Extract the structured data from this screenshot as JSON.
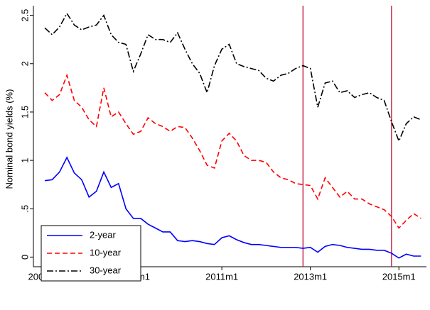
{
  "chart_data": {
    "type": "line",
    "y_label": "Nominal bond yields (%)",
    "x": [
      "2007m1",
      "2007m3",
      "2007m5",
      "2007m7",
      "2007m9",
      "2007m11",
      "2008m1",
      "2008m3",
      "2008m5",
      "2008m7",
      "2008m9",
      "2008m11",
      "2009m1",
      "2009m3",
      "2009m5",
      "2009m7",
      "2009m9",
      "2009m11",
      "2010m1",
      "2010m3",
      "2010m5",
      "2010m7",
      "2010m9",
      "2010m11",
      "2011m1",
      "2011m3",
      "2011m5",
      "2011m7",
      "2011m9",
      "2011m11",
      "2012m1",
      "2012m3",
      "2012m5",
      "2012m7",
      "2012m9",
      "2012m11",
      "2013m1",
      "2013m3",
      "2013m5",
      "2013m7",
      "2013m9",
      "2013m11",
      "2014m1",
      "2014m3",
      "2014m5",
      "2014m7",
      "2014m9",
      "2014m11",
      "2015m1",
      "2015m3",
      "2015m5",
      "2015m7"
    ],
    "series": [
      {
        "name": "2-year",
        "color": "#0000ff",
        "dash": "solid",
        "values": [
          0.79,
          0.8,
          0.88,
          1.03,
          0.87,
          0.8,
          0.62,
          0.68,
          0.88,
          0.72,
          0.76,
          0.5,
          0.4,
          0.4,
          0.34,
          0.3,
          0.26,
          0.26,
          0.17,
          0.16,
          0.17,
          0.16,
          0.14,
          0.13,
          0.2,
          0.22,
          0.18,
          0.15,
          0.13,
          0.13,
          0.12,
          0.11,
          0.1,
          0.1,
          0.1,
          0.09,
          0.1,
          0.05,
          0.11,
          0.13,
          0.12,
          0.1,
          0.09,
          0.08,
          0.08,
          0.07,
          0.07,
          0.04,
          -0.01,
          0.03,
          0.01,
          0.01
        ]
      },
      {
        "name": "10-year",
        "color": "#ff0000",
        "dash": "dash",
        "values": [
          1.7,
          1.62,
          1.68,
          1.88,
          1.62,
          1.55,
          1.42,
          1.35,
          1.75,
          1.45,
          1.5,
          1.38,
          1.27,
          1.3,
          1.44,
          1.38,
          1.35,
          1.3,
          1.35,
          1.34,
          1.23,
          1.1,
          0.95,
          0.92,
          1.2,
          1.28,
          1.2,
          1.05,
          1.0,
          1.0,
          0.98,
          0.88,
          0.82,
          0.8,
          0.76,
          0.75,
          0.74,
          0.6,
          0.82,
          0.72,
          0.62,
          0.68,
          0.6,
          0.6,
          0.55,
          0.52,
          0.49,
          0.42,
          0.3,
          0.38,
          0.45,
          0.4
        ]
      },
      {
        "name": "30-year",
        "color": "#000000",
        "dash": "dashdot",
        "values": [
          2.37,
          2.3,
          2.38,
          2.52,
          2.4,
          2.35,
          2.38,
          2.4,
          2.5,
          2.3,
          2.22,
          2.2,
          1.92,
          2.1,
          2.3,
          2.25,
          2.25,
          2.22,
          2.32,
          2.15,
          2.0,
          1.9,
          1.7,
          1.98,
          2.15,
          2.2,
          2.0,
          1.97,
          1.95,
          1.93,
          1.85,
          1.82,
          1.88,
          1.9,
          1.95,
          1.98,
          1.95,
          1.55,
          1.8,
          1.82,
          1.7,
          1.72,
          1.65,
          1.68,
          1.7,
          1.65,
          1.62,
          1.4,
          1.2,
          1.38,
          1.45,
          1.42
        ]
      }
    ],
    "xticks": [
      "2007m1",
      "2009m1",
      "2011m1",
      "2013m1",
      "2015m1"
    ],
    "vlines": [
      "2012m11",
      "2014m11"
    ],
    "vline_color": "#c0103a",
    "ylim": [
      -0.1,
      2.6
    ],
    "yticks": [
      0,
      {
        "value": 0.5,
        "label": ".5"
      },
      1,
      1.5,
      2,
      2.5
    ],
    "legend": "bottom-left"
  }
}
